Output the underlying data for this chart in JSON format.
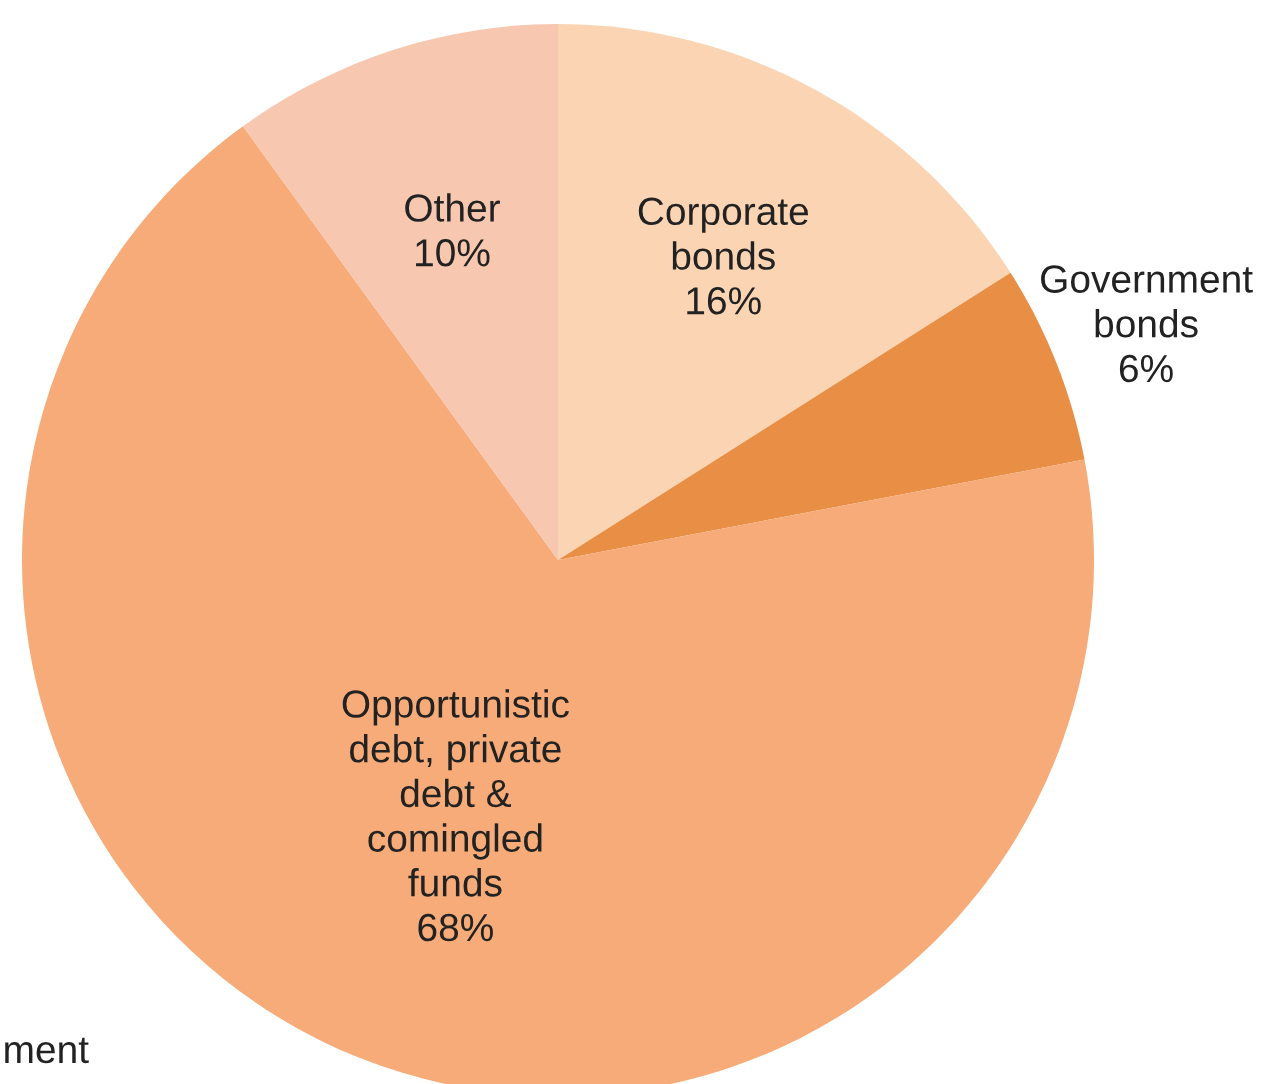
{
  "chart_data": {
    "type": "pie",
    "categories": [
      "Corporate\nbonds",
      "Government\nbonds",
      "Opportunistic\ndebt, private\ndebt &\ncomingled\nfunds",
      "Other"
    ],
    "values": [
      16,
      6,
      68,
      10
    ],
    "value_labels": [
      "16%",
      "6%",
      "68%",
      "10%"
    ],
    "colors": [
      "#fbd5b3",
      "#e98e45",
      "#f6ab78",
      "#f7c7b0"
    ],
    "annotations": [
      "ment"
    ]
  }
}
